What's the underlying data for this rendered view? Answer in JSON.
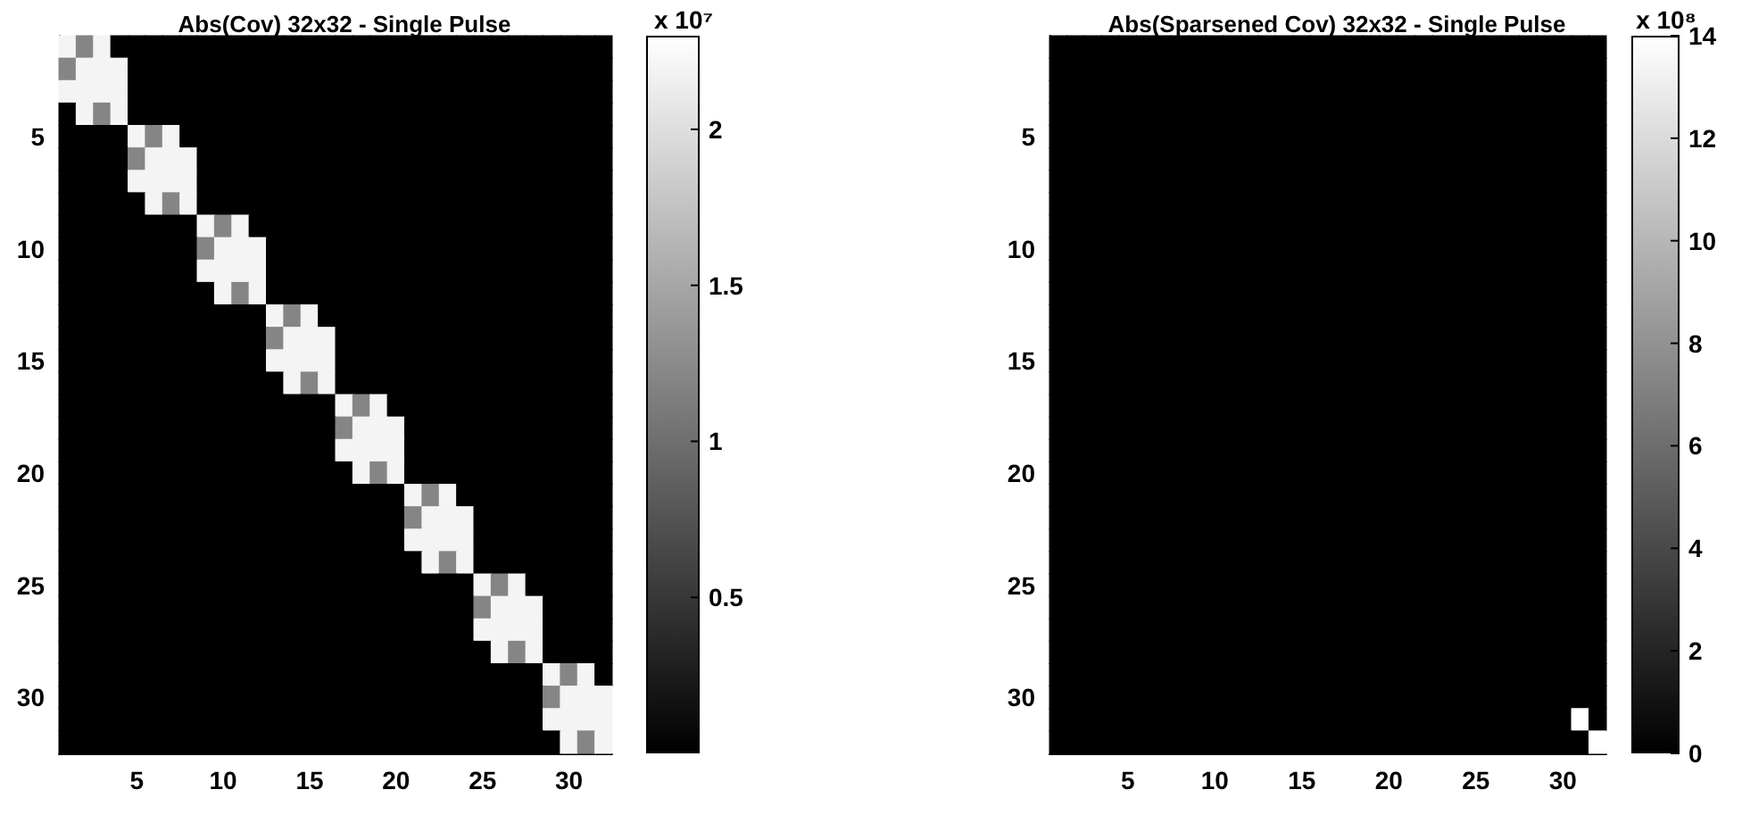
{
  "chart_data": [
    {
      "type": "heatmap",
      "title": "Abs(Cov) 32x32 - Single Pulse",
      "clabel": "x 10⁷",
      "categories": [
        null,
        null,
        null,
        null,
        "5",
        null,
        null,
        null,
        null,
        "10",
        null,
        null,
        null,
        null,
        "15",
        null,
        null,
        null,
        null,
        "20",
        null,
        null,
        null,
        null,
        "25",
        null,
        null,
        null,
        null,
        "30",
        null,
        null
      ],
      "y_categories": [
        null,
        null,
        null,
        null,
        "5",
        null,
        null,
        null,
        null,
        "10",
        null,
        null,
        null,
        null,
        "15",
        null,
        null,
        null,
        null,
        "20",
        null,
        null,
        null,
        null,
        "25",
        null,
        null,
        null,
        null,
        "30",
        null,
        null
      ],
      "clim": [
        0,
        2.3
      ],
      "cticks": [
        {
          "value": 0.5,
          "label": "0.5"
        },
        1,
        1.5,
        2
      ],
      "cells": [
        [
          2.2,
          1.2,
          2.2,
          0,
          0,
          0,
          0,
          0,
          0,
          0,
          0,
          0,
          0,
          0,
          0,
          0,
          0,
          0,
          0,
          0,
          0,
          0,
          0,
          0,
          0,
          0,
          0,
          0,
          0,
          0,
          0,
          0
        ],
        [
          1.2,
          2.2,
          2.2,
          2.2,
          0,
          0,
          0,
          0,
          0,
          0,
          0,
          0,
          0,
          0,
          0,
          0,
          0,
          0,
          0,
          0,
          0,
          0,
          0,
          0,
          0,
          0,
          0,
          0,
          0,
          0,
          0,
          0
        ],
        [
          2.2,
          2.2,
          2.2,
          2.2,
          0,
          0,
          0,
          0,
          0,
          0,
          0,
          0,
          0,
          0,
          0,
          0,
          0,
          0,
          0,
          0,
          0,
          0,
          0,
          0,
          0,
          0,
          0,
          0,
          0,
          0,
          0,
          0
        ],
        [
          0,
          2.2,
          1.2,
          2.2,
          0,
          0,
          0,
          0,
          0,
          0,
          0,
          0,
          0,
          0,
          0,
          0,
          0,
          0,
          0,
          0,
          0,
          0,
          0,
          0,
          0,
          0,
          0,
          0,
          0,
          0,
          0,
          0
        ],
        [
          0,
          0,
          0,
          0,
          2.2,
          1.2,
          2.2,
          0,
          0,
          0,
          0,
          0,
          0,
          0,
          0,
          0,
          0,
          0,
          0,
          0,
          0,
          0,
          0,
          0,
          0,
          0,
          0,
          0,
          0,
          0,
          0,
          0
        ],
        [
          0,
          0,
          0,
          0,
          1.2,
          2.2,
          2.2,
          2.2,
          0,
          0,
          0,
          0,
          0,
          0,
          0,
          0,
          0,
          0,
          0,
          0,
          0,
          0,
          0,
          0,
          0,
          0,
          0,
          0,
          0,
          0,
          0,
          0
        ],
        [
          0,
          0,
          0,
          0,
          2.2,
          2.2,
          2.2,
          2.2,
          0,
          0,
          0,
          0,
          0,
          0,
          0,
          0,
          0,
          0,
          0,
          0,
          0,
          0,
          0,
          0,
          0,
          0,
          0,
          0,
          0,
          0,
          0,
          0
        ],
        [
          0,
          0,
          0,
          0,
          0,
          2.2,
          1.2,
          2.2,
          0,
          0,
          0,
          0,
          0,
          0,
          0,
          0,
          0,
          0,
          0,
          0,
          0,
          0,
          0,
          0,
          0,
          0,
          0,
          0,
          0,
          0,
          0,
          0
        ],
        [
          0,
          0,
          0,
          0,
          0,
          0,
          0,
          0,
          2.2,
          1.2,
          2.2,
          0,
          0,
          0,
          0,
          0,
          0,
          0,
          0,
          0,
          0,
          0,
          0,
          0,
          0,
          0,
          0,
          0,
          0,
          0,
          0,
          0
        ],
        [
          0,
          0,
          0,
          0,
          0,
          0,
          0,
          0,
          1.2,
          2.2,
          2.2,
          2.2,
          0,
          0,
          0,
          0,
          0,
          0,
          0,
          0,
          0,
          0,
          0,
          0,
          0,
          0,
          0,
          0,
          0,
          0,
          0,
          0
        ],
        [
          0,
          0,
          0,
          0,
          0,
          0,
          0,
          0,
          2.2,
          2.2,
          2.2,
          2.2,
          0,
          0,
          0,
          0,
          0,
          0,
          0,
          0,
          0,
          0,
          0,
          0,
          0,
          0,
          0,
          0,
          0,
          0,
          0,
          0
        ],
        [
          0,
          0,
          0,
          0,
          0,
          0,
          0,
          0,
          0,
          2.2,
          1.2,
          2.2,
          0,
          0,
          0,
          0,
          0,
          0,
          0,
          0,
          0,
          0,
          0,
          0,
          0,
          0,
          0,
          0,
          0,
          0,
          0,
          0
        ],
        [
          0,
          0,
          0,
          0,
          0,
          0,
          0,
          0,
          0,
          0,
          0,
          0,
          2.2,
          1.2,
          2.2,
          0,
          0,
          0,
          0,
          0,
          0,
          0,
          0,
          0,
          0,
          0,
          0,
          0,
          0,
          0,
          0,
          0
        ],
        [
          0,
          0,
          0,
          0,
          0,
          0,
          0,
          0,
          0,
          0,
          0,
          0,
          1.2,
          2.2,
          2.2,
          2.2,
          0,
          0,
          0,
          0,
          0,
          0,
          0,
          0,
          0,
          0,
          0,
          0,
          0,
          0,
          0,
          0
        ],
        [
          0,
          0,
          0,
          0,
          0,
          0,
          0,
          0,
          0,
          0,
          0,
          0,
          2.2,
          2.2,
          2.2,
          2.2,
          0,
          0,
          0,
          0,
          0,
          0,
          0,
          0,
          0,
          0,
          0,
          0,
          0,
          0,
          0,
          0
        ],
        [
          0,
          0,
          0,
          0,
          0,
          0,
          0,
          0,
          0,
          0,
          0,
          0,
          0,
          2.2,
          1.2,
          2.2,
          0,
          0,
          0,
          0,
          0,
          0,
          0,
          0,
          0,
          0,
          0,
          0,
          0,
          0,
          0,
          0
        ],
        [
          0,
          0,
          0,
          0,
          0,
          0,
          0,
          0,
          0,
          0,
          0,
          0,
          0,
          0,
          0,
          0,
          2.2,
          1.2,
          2.2,
          0,
          0,
          0,
          0,
          0,
          0,
          0,
          0,
          0,
          0,
          0,
          0,
          0
        ],
        [
          0,
          0,
          0,
          0,
          0,
          0,
          0,
          0,
          0,
          0,
          0,
          0,
          0,
          0,
          0,
          0,
          1.2,
          2.2,
          2.2,
          2.2,
          0,
          0,
          0,
          0,
          0,
          0,
          0,
          0,
          0,
          0,
          0,
          0
        ],
        [
          0,
          0,
          0,
          0,
          0,
          0,
          0,
          0,
          0,
          0,
          0,
          0,
          0,
          0,
          0,
          0,
          2.2,
          2.2,
          2.2,
          2.2,
          0,
          0,
          0,
          0,
          0,
          0,
          0,
          0,
          0,
          0,
          0,
          0
        ],
        [
          0,
          0,
          0,
          0,
          0,
          0,
          0,
          0,
          0,
          0,
          0,
          0,
          0,
          0,
          0,
          0,
          0,
          2.2,
          1.2,
          2.2,
          0,
          0,
          0,
          0,
          0,
          0,
          0,
          0,
          0,
          0,
          0,
          0
        ],
        [
          0,
          0,
          0,
          0,
          0,
          0,
          0,
          0,
          0,
          0,
          0,
          0,
          0,
          0,
          0,
          0,
          0,
          0,
          0,
          0,
          2.2,
          1.2,
          2.2,
          0,
          0,
          0,
          0,
          0,
          0,
          0,
          0,
          0
        ],
        [
          0,
          0,
          0,
          0,
          0,
          0,
          0,
          0,
          0,
          0,
          0,
          0,
          0,
          0,
          0,
          0,
          0,
          0,
          0,
          0,
          1.2,
          2.2,
          2.2,
          2.2,
          0,
          0,
          0,
          0,
          0,
          0,
          0,
          0
        ],
        [
          0,
          0,
          0,
          0,
          0,
          0,
          0,
          0,
          0,
          0,
          0,
          0,
          0,
          0,
          0,
          0,
          0,
          0,
          0,
          0,
          2.2,
          2.2,
          2.2,
          2.2,
          0,
          0,
          0,
          0,
          0,
          0,
          0,
          0
        ],
        [
          0,
          0,
          0,
          0,
          0,
          0,
          0,
          0,
          0,
          0,
          0,
          0,
          0,
          0,
          0,
          0,
          0,
          0,
          0,
          0,
          0,
          2.2,
          1.2,
          2.2,
          0,
          0,
          0,
          0,
          0,
          0,
          0,
          0
        ],
        [
          0,
          0,
          0,
          0,
          0,
          0,
          0,
          0,
          0,
          0,
          0,
          0,
          0,
          0,
          0,
          0,
          0,
          0,
          0,
          0,
          0,
          0,
          0,
          0,
          2.2,
          1.2,
          2.2,
          0,
          0,
          0,
          0,
          0
        ],
        [
          0,
          0,
          0,
          0,
          0,
          0,
          0,
          0,
          0,
          0,
          0,
          0,
          0,
          0,
          0,
          0,
          0,
          0,
          0,
          0,
          0,
          0,
          0,
          0,
          1.2,
          2.2,
          2.2,
          2.2,
          0,
          0,
          0,
          0
        ],
        [
          0,
          0,
          0,
          0,
          0,
          0,
          0,
          0,
          0,
          0,
          0,
          0,
          0,
          0,
          0,
          0,
          0,
          0,
          0,
          0,
          0,
          0,
          0,
          0,
          2.2,
          2.2,
          2.2,
          2.2,
          0,
          0,
          0,
          0
        ],
        [
          0,
          0,
          0,
          0,
          0,
          0,
          0,
          0,
          0,
          0,
          0,
          0,
          0,
          0,
          0,
          0,
          0,
          0,
          0,
          0,
          0,
          0,
          0,
          0,
          0,
          2.2,
          1.2,
          2.2,
          0,
          0,
          0,
          0
        ],
        [
          0,
          0,
          0,
          0,
          0,
          0,
          0,
          0,
          0,
          0,
          0,
          0,
          0,
          0,
          0,
          0,
          0,
          0,
          0,
          0,
          0,
          0,
          0,
          0,
          0,
          0,
          0,
          0,
          2.2,
          1.2,
          2.2,
          0
        ],
        [
          0,
          0,
          0,
          0,
          0,
          0,
          0,
          0,
          0,
          0,
          0,
          0,
          0,
          0,
          0,
          0,
          0,
          0,
          0,
          0,
          0,
          0,
          0,
          0,
          0,
          0,
          0,
          0,
          1.2,
          2.2,
          2.2,
          2.2
        ],
        [
          0,
          0,
          0,
          0,
          0,
          0,
          0,
          0,
          0,
          0,
          0,
          0,
          0,
          0,
          0,
          0,
          0,
          0,
          0,
          0,
          0,
          0,
          0,
          0,
          0,
          0,
          0,
          0,
          2.2,
          2.2,
          2.2,
          2.2
        ],
        [
          0,
          0,
          0,
          0,
          0,
          0,
          0,
          0,
          0,
          0,
          0,
          0,
          0,
          0,
          0,
          0,
          0,
          0,
          0,
          0,
          0,
          0,
          0,
          0,
          0,
          0,
          0,
          0,
          0,
          2.2,
          1.2,
          2.2
        ]
      ]
    },
    {
      "type": "heatmap",
      "title": "Abs(Sparsened Cov) 32x32 - Single Pulse",
      "clabel": "x 10⁸",
      "categories": [
        null,
        null,
        null,
        null,
        "5",
        null,
        null,
        null,
        null,
        "10",
        null,
        null,
        null,
        null,
        "15",
        null,
        null,
        null,
        null,
        "20",
        null,
        null,
        null,
        null,
        "25",
        null,
        null,
        null,
        null,
        "30",
        null,
        null
      ],
      "y_categories": [
        null,
        null,
        null,
        null,
        "5",
        null,
        null,
        null,
        null,
        "10",
        null,
        null,
        null,
        null,
        "15",
        null,
        null,
        null,
        null,
        "20",
        null,
        null,
        null,
        null,
        "25",
        null,
        null,
        null,
        null,
        "30",
        null,
        null
      ],
      "clim": [
        0,
        14
      ],
      "cticks": [
        0,
        2,
        4,
        6,
        8,
        10,
        12,
        14
      ],
      "cells": [
        [
          0,
          0,
          0,
          0,
          0,
          0,
          0,
          0,
          0,
          0,
          0,
          0,
          0,
          0,
          0,
          0,
          0,
          0,
          0,
          0,
          0,
          0,
          0,
          0,
          0,
          0,
          0,
          0,
          0,
          0,
          0,
          0
        ],
        [
          0,
          0,
          0,
          0,
          0,
          0,
          0,
          0,
          0,
          0,
          0,
          0,
          0,
          0,
          0,
          0,
          0,
          0,
          0,
          0,
          0,
          0,
          0,
          0,
          0,
          0,
          0,
          0,
          0,
          0,
          0,
          0
        ],
        [
          0,
          0,
          0,
          0,
          0,
          0,
          0,
          0,
          0,
          0,
          0,
          0,
          0,
          0,
          0,
          0,
          0,
          0,
          0,
          0,
          0,
          0,
          0,
          0,
          0,
          0,
          0,
          0,
          0,
          0,
          0,
          0
        ],
        [
          0,
          0,
          0,
          0,
          0,
          0,
          0,
          0,
          0,
          0,
          0,
          0,
          0,
          0,
          0,
          0,
          0,
          0,
          0,
          0,
          0,
          0,
          0,
          0,
          0,
          0,
          0,
          0,
          0,
          0,
          0,
          0
        ],
        [
          0,
          0,
          0,
          0,
          0,
          0,
          0,
          0,
          0,
          0,
          0,
          0,
          0,
          0,
          0,
          0,
          0,
          0,
          0,
          0,
          0,
          0,
          0,
          0,
          0,
          0,
          0,
          0,
          0,
          0,
          0,
          0
        ],
        [
          0,
          0,
          0,
          0,
          0,
          0,
          0,
          0,
          0,
          0,
          0,
          0,
          0,
          0,
          0,
          0,
          0,
          0,
          0,
          0,
          0,
          0,
          0,
          0,
          0,
          0,
          0,
          0,
          0,
          0,
          0,
          0
        ],
        [
          0,
          0,
          0,
          0,
          0,
          0,
          0,
          0,
          0,
          0,
          0,
          0,
          0,
          0,
          0,
          0,
          0,
          0,
          0,
          0,
          0,
          0,
          0,
          0,
          0,
          0,
          0,
          0,
          0,
          0,
          0,
          0
        ],
        [
          0,
          0,
          0,
          0,
          0,
          0,
          0,
          0,
          0,
          0,
          0,
          0,
          0,
          0,
          0,
          0,
          0,
          0,
          0,
          0,
          0,
          0,
          0,
          0,
          0,
          0,
          0,
          0,
          0,
          0,
          0,
          0
        ],
        [
          0,
          0,
          0,
          0,
          0,
          0,
          0,
          0,
          0,
          0,
          0,
          0,
          0,
          0,
          0,
          0,
          0,
          0,
          0,
          0,
          0,
          0,
          0,
          0,
          0,
          0,
          0,
          0,
          0,
          0,
          0,
          0
        ],
        [
          0,
          0,
          0,
          0,
          0,
          0,
          0,
          0,
          0,
          0,
          0,
          0,
          0,
          0,
          0,
          0,
          0,
          0,
          0,
          0,
          0,
          0,
          0,
          0,
          0,
          0,
          0,
          0,
          0,
          0,
          0,
          0
        ],
        [
          0,
          0,
          0,
          0,
          0,
          0,
          0,
          0,
          0,
          0,
          0,
          0,
          0,
          0,
          0,
          0,
          0,
          0,
          0,
          0,
          0,
          0,
          0,
          0,
          0,
          0,
          0,
          0,
          0,
          0,
          0,
          0
        ],
        [
          0,
          0,
          0,
          0,
          0,
          0,
          0,
          0,
          0,
          0,
          0,
          0,
          0,
          0,
          0,
          0,
          0,
          0,
          0,
          0,
          0,
          0,
          0,
          0,
          0,
          0,
          0,
          0,
          0,
          0,
          0,
          0
        ],
        [
          0,
          0,
          0,
          0,
          0,
          0,
          0,
          0,
          0,
          0,
          0,
          0,
          0,
          0,
          0,
          0,
          0,
          0,
          0,
          0,
          0,
          0,
          0,
          0,
          0,
          0,
          0,
          0,
          0,
          0,
          0,
          0
        ],
        [
          0,
          0,
          0,
          0,
          0,
          0,
          0,
          0,
          0,
          0,
          0,
          0,
          0,
          0,
          0,
          0,
          0,
          0,
          0,
          0,
          0,
          0,
          0,
          0,
          0,
          0,
          0,
          0,
          0,
          0,
          0,
          0
        ],
        [
          0,
          0,
          0,
          0,
          0,
          0,
          0,
          0,
          0,
          0,
          0,
          0,
          0,
          0,
          0,
          0,
          0,
          0,
          0,
          0,
          0,
          0,
          0,
          0,
          0,
          0,
          0,
          0,
          0,
          0,
          0,
          0
        ],
        [
          0,
          0,
          0,
          0,
          0,
          0,
          0,
          0,
          0,
          0,
          0,
          0,
          0,
          0,
          0,
          0,
          0,
          0,
          0,
          0,
          0,
          0,
          0,
          0,
          0,
          0,
          0,
          0,
          0,
          0,
          0,
          0
        ],
        [
          0,
          0,
          0,
          0,
          0,
          0,
          0,
          0,
          0,
          0,
          0,
          0,
          0,
          0,
          0,
          0,
          0,
          0,
          0,
          0,
          0,
          0,
          0,
          0,
          0,
          0,
          0,
          0,
          0,
          0,
          0,
          0
        ],
        [
          0,
          0,
          0,
          0,
          0,
          0,
          0,
          0,
          0,
          0,
          0,
          0,
          0,
          0,
          0,
          0,
          0,
          0,
          0,
          0,
          0,
          0,
          0,
          0,
          0,
          0,
          0,
          0,
          0,
          0,
          0,
          0
        ],
        [
          0,
          0,
          0,
          0,
          0,
          0,
          0,
          0,
          0,
          0,
          0,
          0,
          0,
          0,
          0,
          0,
          0,
          0,
          0,
          0,
          0,
          0,
          0,
          0,
          0,
          0,
          0,
          0,
          0,
          0,
          0,
          0
        ],
        [
          0,
          0,
          0,
          0,
          0,
          0,
          0,
          0,
          0,
          0,
          0,
          0,
          0,
          0,
          0,
          0,
          0,
          0,
          0,
          0,
          0,
          0,
          0,
          0,
          0,
          0,
          0,
          0,
          0,
          0,
          0,
          0
        ],
        [
          0,
          0,
          0,
          0,
          0,
          0,
          0,
          0,
          0,
          0,
          0,
          0,
          0,
          0,
          0,
          0,
          0,
          0,
          0,
          0,
          0,
          0,
          0,
          0,
          0,
          0,
          0,
          0,
          0,
          0,
          0,
          0
        ],
        [
          0,
          0,
          0,
          0,
          0,
          0,
          0,
          0,
          0,
          0,
          0,
          0,
          0,
          0,
          0,
          0,
          0,
          0,
          0,
          0,
          0,
          0,
          0,
          0,
          0,
          0,
          0,
          0,
          0,
          0,
          0,
          0
        ],
        [
          0,
          0,
          0,
          0,
          0,
          0,
          0,
          0,
          0,
          0,
          0,
          0,
          0,
          0,
          0,
          0,
          0,
          0,
          0,
          0,
          0,
          0,
          0,
          0,
          0,
          0,
          0,
          0,
          0,
          0,
          0,
          0
        ],
        [
          0,
          0,
          0,
          0,
          0,
          0,
          0,
          0,
          0,
          0,
          0,
          0,
          0,
          0,
          0,
          0,
          0,
          0,
          0,
          0,
          0,
          0,
          0,
          0,
          0,
          0,
          0,
          0,
          0,
          0,
          0,
          0
        ],
        [
          0,
          0,
          0,
          0,
          0,
          0,
          0,
          0,
          0,
          0,
          0,
          0,
          0,
          0,
          0,
          0,
          0,
          0,
          0,
          0,
          0,
          0,
          0,
          0,
          0,
          0,
          0,
          0,
          0,
          0,
          0,
          0
        ],
        [
          0,
          0,
          0,
          0,
          0,
          0,
          0,
          0,
          0,
          0,
          0,
          0,
          0,
          0,
          0,
          0,
          0,
          0,
          0,
          0,
          0,
          0,
          0,
          0,
          0,
          0,
          0,
          0,
          0,
          0,
          0,
          0
        ],
        [
          0,
          0,
          0,
          0,
          0,
          0,
          0,
          0,
          0,
          0,
          0,
          0,
          0,
          0,
          0,
          0,
          0,
          0,
          0,
          0,
          0,
          0,
          0,
          0,
          0,
          0,
          0,
          0,
          0,
          0,
          0,
          0
        ],
        [
          0,
          0,
          0,
          0,
          0,
          0,
          0,
          0,
          0,
          0,
          0,
          0,
          0,
          0,
          0,
          0,
          0,
          0,
          0,
          0,
          0,
          0,
          0,
          0,
          0,
          0,
          0,
          0,
          0,
          0,
          0,
          0
        ],
        [
          0,
          0,
          0,
          0,
          0,
          0,
          0,
          0,
          0,
          0,
          0,
          0,
          0,
          0,
          0,
          0,
          0,
          0,
          0,
          0,
          0,
          0,
          0,
          0,
          0,
          0,
          0,
          0,
          0,
          0,
          0,
          0
        ],
        [
          0,
          0,
          0,
          0,
          0,
          0,
          0,
          0,
          0,
          0,
          0,
          0,
          0,
          0,
          0,
          0,
          0,
          0,
          0,
          0,
          0,
          0,
          0,
          0,
          0,
          0,
          0,
          0,
          0,
          0,
          0,
          0
        ],
        [
          0,
          0,
          0,
          0,
          0,
          0,
          0,
          0,
          0,
          0,
          0,
          0,
          0,
          0,
          0,
          0,
          0,
          0,
          0,
          0,
          0,
          0,
          0,
          0,
          0,
          0,
          0,
          0,
          0,
          0,
          14,
          0
        ],
        [
          0,
          0,
          0,
          0,
          0,
          0,
          0,
          0,
          0,
          0,
          0,
          0,
          0,
          0,
          0,
          0,
          0,
          0,
          0,
          0,
          0,
          0,
          0,
          0,
          0,
          0,
          0,
          0,
          0,
          0,
          0,
          14
        ]
      ]
    }
  ]
}
